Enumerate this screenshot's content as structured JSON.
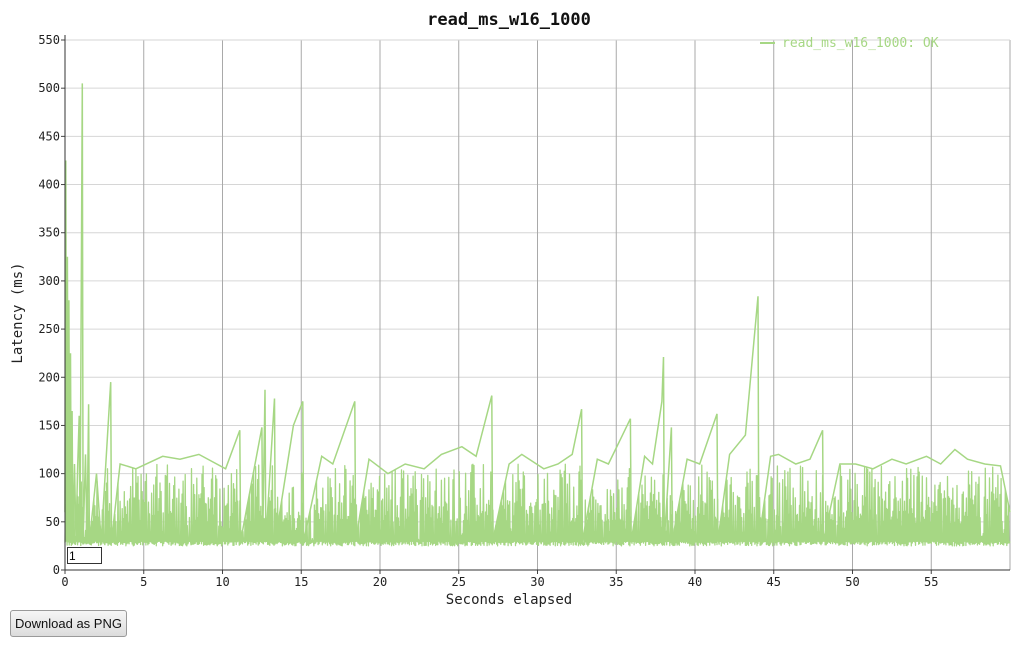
{
  "chart_data": {
    "type": "line",
    "title": "read_ms_w16_1000",
    "xlabel": "Seconds elapsed",
    "ylabel": "Latency (ms)",
    "xlim": [
      0,
      60
    ],
    "ylim": [
      0,
      550
    ],
    "xticks": [
      0,
      5,
      10,
      15,
      20,
      25,
      30,
      35,
      40,
      45,
      50,
      55
    ],
    "yticks": [
      0,
      50,
      100,
      150,
      200,
      250,
      300,
      350,
      400,
      450,
      500,
      550
    ],
    "grid": true,
    "legend_position": "top-right",
    "series": [
      {
        "name": "read_ms_w16_1000: OK",
        "color": "#a6d784",
        "baseline_ms": 27,
        "typical_peak_ms": 110,
        "points": [
          [
            0.0,
            60
          ],
          [
            0.05,
            425
          ],
          [
            0.1,
            40
          ],
          [
            0.15,
            325
          ],
          [
            0.2,
            30
          ],
          [
            0.25,
            280
          ],
          [
            0.3,
            28
          ],
          [
            0.35,
            225
          ],
          [
            0.4,
            30
          ],
          [
            0.45,
            165
          ],
          [
            0.5,
            28
          ],
          [
            0.6,
            110
          ],
          [
            0.7,
            30
          ],
          [
            0.8,
            105
          ],
          [
            0.9,
            160
          ],
          [
            0.95,
            30
          ],
          [
            1.1,
            505
          ],
          [
            1.15,
            30
          ],
          [
            1.3,
            120
          ],
          [
            1.4,
            30
          ],
          [
            1.5,
            172
          ],
          [
            1.55,
            30
          ],
          [
            2.0,
            100
          ],
          [
            2.3,
            30
          ],
          [
            2.9,
            195
          ],
          [
            2.95,
            30
          ],
          [
            3.5,
            110
          ],
          [
            4.5,
            105
          ],
          [
            6.2,
            118
          ],
          [
            7.3,
            115
          ],
          [
            8.5,
            120
          ],
          [
            10.2,
            105
          ],
          [
            11.1,
            145
          ],
          [
            11.15,
            30
          ],
          [
            12.5,
            148
          ],
          [
            12.55,
            30
          ],
          [
            12.7,
            187
          ],
          [
            12.75,
            30
          ],
          [
            13.3,
            178
          ],
          [
            13.35,
            30
          ],
          [
            14.5,
            150
          ],
          [
            15.1,
            175
          ],
          [
            15.15,
            30
          ],
          [
            16.3,
            118
          ],
          [
            17.0,
            110
          ],
          [
            18.4,
            175
          ],
          [
            18.45,
            30
          ],
          [
            19.3,
            115
          ],
          [
            20.5,
            100
          ],
          [
            21.6,
            110
          ],
          [
            22.8,
            105
          ],
          [
            23.9,
            120
          ],
          [
            25.2,
            128
          ],
          [
            26.1,
            118
          ],
          [
            27.1,
            181
          ],
          [
            27.15,
            30
          ],
          [
            28.2,
            110
          ],
          [
            29.0,
            120
          ],
          [
            30.4,
            105
          ],
          [
            31.3,
            110
          ],
          [
            32.2,
            120
          ],
          [
            32.8,
            167
          ],
          [
            32.85,
            30
          ],
          [
            33.8,
            115
          ],
          [
            34.5,
            110
          ],
          [
            35.4,
            140
          ],
          [
            35.9,
            157
          ],
          [
            35.95,
            30
          ],
          [
            36.8,
            118
          ],
          [
            37.3,
            110
          ],
          [
            37.9,
            175
          ],
          [
            38.0,
            221
          ],
          [
            38.05,
            30
          ],
          [
            38.5,
            148
          ],
          [
            38.55,
            30
          ],
          [
            39.5,
            115
          ],
          [
            40.3,
            110
          ],
          [
            41.4,
            162
          ],
          [
            41.45,
            30
          ],
          [
            42.2,
            120
          ],
          [
            43.2,
            140
          ],
          [
            44.0,
            284
          ],
          [
            44.05,
            30
          ],
          [
            44.8,
            118
          ],
          [
            45.3,
            120
          ],
          [
            46.4,
            110
          ],
          [
            47.3,
            115
          ],
          [
            48.1,
            145
          ],
          [
            48.15,
            30
          ],
          [
            49.2,
            110
          ],
          [
            50.2,
            110
          ],
          [
            51.3,
            105
          ],
          [
            52.5,
            115
          ],
          [
            53.4,
            110
          ],
          [
            54.7,
            118
          ],
          [
            55.6,
            110
          ],
          [
            56.5,
            125
          ],
          [
            57.3,
            115
          ],
          [
            58.4,
            110
          ],
          [
            59.4,
            108
          ],
          [
            60.0,
            60
          ]
        ]
      }
    ]
  },
  "controls": {
    "rolling_period_value": "1",
    "download_label": "Download as PNG"
  }
}
